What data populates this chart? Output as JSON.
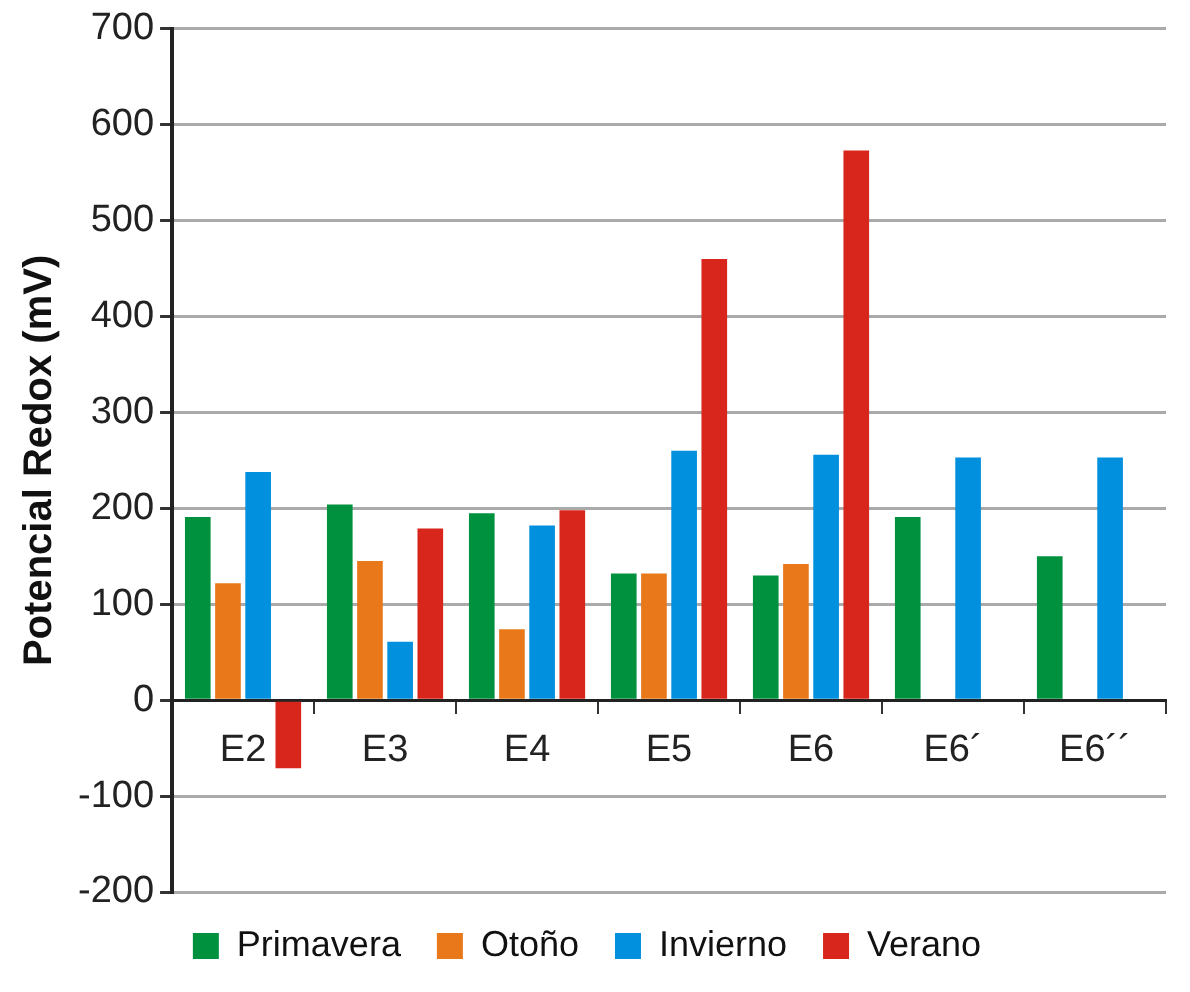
{
  "chart_data": {
    "type": "bar",
    "ylabel": "Potencial Redox (mV)",
    "categories": [
      "E2",
      "E3",
      "E4",
      "E5",
      "E6",
      "E6´",
      "E6´´"
    ],
    "series": [
      {
        "name": "Primavera",
        "color": "#00913f",
        "values": [
          191,
          204,
          195,
          132,
          130,
          191,
          150
        ]
      },
      {
        "name": "Otoño",
        "color": "#e8781a",
        "values": [
          122,
          145,
          74,
          132,
          142,
          null,
          null
        ]
      },
      {
        "name": "Invierno",
        "color": "#0090dd",
        "values": [
          238,
          61,
          182,
          260,
          256,
          253,
          253
        ]
      },
      {
        "name": "Verano",
        "color": "#d9261c",
        "values": [
          -71,
          179,
          198,
          460,
          573,
          null,
          null
        ]
      }
    ],
    "ylim": [
      -200,
      700
    ],
    "yticks": [
      -200,
      -100,
      0,
      100,
      200,
      300,
      400,
      500,
      600,
      700
    ],
    "grid": "y",
    "legend": "bottom"
  }
}
